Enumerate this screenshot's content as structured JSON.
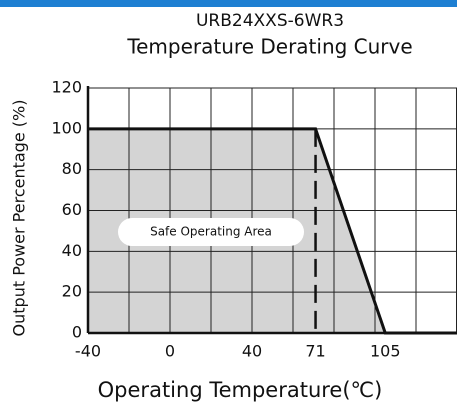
{
  "chart_data": {
    "type": "line",
    "title": "URB24XXS-6WR3",
    "subtitle": "Temperature Derating Curve",
    "x_label": "Operating Temperature(℃)",
    "y_label": "Output Power Percentage (%)",
    "annotation": "Safe Operating Area",
    "x": [
      -40,
      71,
      105,
      140
    ],
    "series": [
      {
        "name": "Derating",
        "color": "#111111",
        "values": [
          100,
          100,
          0,
          0
        ]
      }
    ],
    "xlim": [
      -40,
      140
    ],
    "xticks": [
      -40,
      0,
      40,
      71,
      105
    ],
    "xgrid": [
      -40,
      -20,
      0,
      20,
      40,
      60,
      80,
      100,
      120,
      140
    ],
    "ylim": [
      0,
      120
    ],
    "yticks": [
      0,
      20,
      40,
      60,
      80,
      100,
      120
    ],
    "grid": true,
    "area_color": "#d4d4d4"
  }
}
